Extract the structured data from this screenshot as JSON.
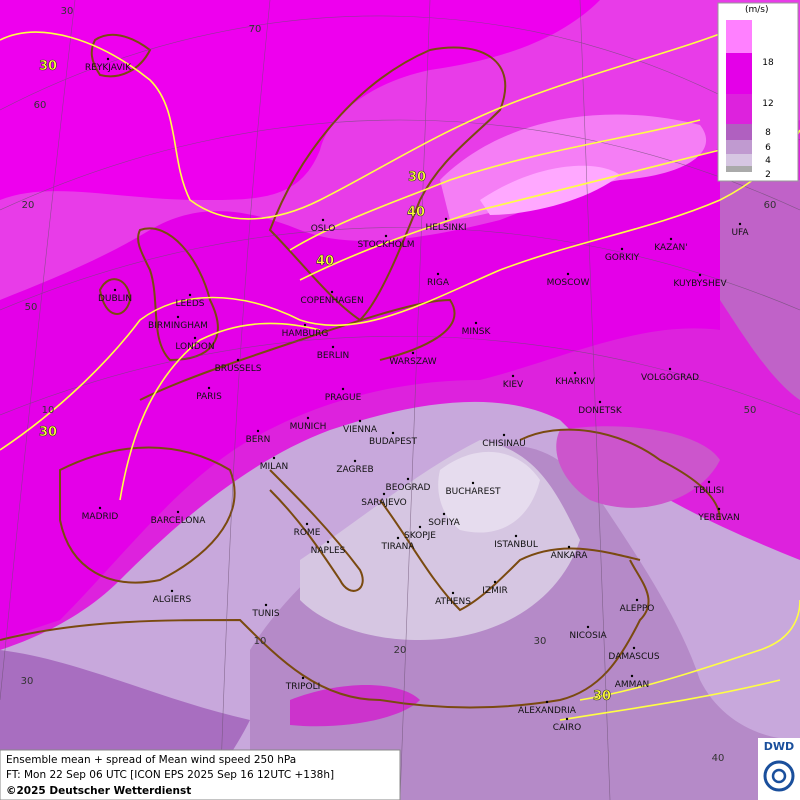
{
  "cities": [
    "REYKJAVIK",
    "OSLO",
    "STOCKHOLM",
    "HELSINKI",
    "RIGA",
    "MOSCOW",
    "GORKIY",
    "KAZAN'",
    "UFA",
    "KUYBYSHEV",
    "DUBLIN",
    "LEEDS",
    "BIRMINGHAM",
    "LONDON",
    "COPENHAGEN",
    "HAMBURG",
    "BERLIN",
    "MINSK",
    "WARSZAW",
    "BRUSSELS",
    "PARIS",
    "PRAGUE",
    "KIEV",
    "KHARKIV",
    "VOLGOGRAD",
    "DONETSK",
    "BERN",
    "MUNICH",
    "VIENNA",
    "BUDAPEST",
    "CHISINAU",
    "MILAN",
    "ZAGREB",
    "BEOGRAD",
    "BUCHAREST",
    "TBILISI",
    "SARAJEVO",
    "MADRID",
    "BARCELONA",
    "SOFIYA",
    "YEREVAN",
    "ROME",
    "SKOPJE",
    "ISTANBUL",
    "NAPLES",
    "TIRANA",
    "ANKARA",
    "ALGIERS",
    "IZMIR",
    "ATHENS",
    "ALEPPO",
    "TUNIS",
    "NICOSIA",
    "DAMASCUS",
    "TRIPOLI",
    "AMMAN",
    "ALEXANDRIA",
    "CAIRO"
  ],
  "contour_labels": [
    30,
    30,
    40,
    40,
    30,
    30
  ],
  "grid_labels": [
    30,
    70,
    60,
    20,
    50,
    10,
    60,
    50,
    10,
    20,
    30,
    30,
    40
  ],
  "legend": {
    "unit": "(m/s)",
    "ticks": [
      18,
      12,
      8,
      6,
      4,
      2
    ]
  },
  "footer": {
    "line1": "Ensemble mean + spread of Mean wind speed 250 hPa",
    "line2": "FT: Mon 22 Sep 06 UTC [ICON EPS 2025 Sep 16 12UTC +138h]",
    "line3": "©2025 Deutscher Wetterdienst"
  },
  "logo": "DWD"
}
